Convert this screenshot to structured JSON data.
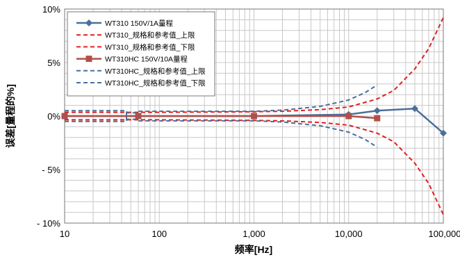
{
  "chart_data": {
    "type": "line",
    "title": "",
    "xlabel": "频率[Hz]",
    "ylabel": "误差[量程的%]",
    "xscale": "log",
    "xlim": [
      10,
      100000
    ],
    "ylim": [
      -10,
      10
    ],
    "x_ticks": [
      "10",
      "100",
      "1,000",
      "10,000",
      "100,000"
    ],
    "y_ticks": [
      "10%",
      "5%",
      "0%",
      "- 5%",
      "- 10%"
    ],
    "grid": true,
    "legend_position": "top-left",
    "series": [
      {
        "name": "WT310 150V/1A量程",
        "style": "solid",
        "marker": "diamond",
        "color": "#4a6f9a",
        "x": [
          10,
          60,
          1000,
          10000,
          20000,
          50000,
          100000
        ],
        "y": [
          0.0,
          0.0,
          0.0,
          0.15,
          0.5,
          0.7,
          -1.6
        ]
      },
      {
        "name": "WT310_规格和参考值_上限",
        "style": "dashed",
        "marker": "none",
        "color": "#e02020",
        "x": [
          10,
          100,
          1000,
          2000,
          5000,
          10000,
          20000,
          30000,
          50000,
          70000,
          100000
        ],
        "y": [
          0.35,
          0.35,
          0.4,
          0.45,
          0.6,
          0.85,
          1.6,
          2.4,
          4.4,
          6.3,
          9.2
        ]
      },
      {
        "name": "WT310_规格和参考值_下限",
        "style": "dashed",
        "marker": "none",
        "color": "#e02020",
        "x": [
          10,
          100,
          1000,
          2000,
          5000,
          10000,
          20000,
          30000,
          50000,
          70000,
          100000
        ],
        "y": [
          -0.35,
          -0.35,
          -0.4,
          -0.45,
          -0.6,
          -0.85,
          -1.6,
          -2.4,
          -4.4,
          -6.3,
          -9.2
        ]
      },
      {
        "name": "WT310HC 150V/10A量程",
        "style": "solid",
        "marker": "square",
        "color": "#b0504a",
        "x": [
          10,
          60,
          1000,
          10000,
          20000
        ],
        "y": [
          0.0,
          0.0,
          0.0,
          0.0,
          -0.2
        ]
      },
      {
        "name": "WT310HC_规格和参考值_上限",
        "style": "dashed",
        "marker": "none",
        "color": "#4a6f9a",
        "x": [
          10,
          45,
          45,
          60,
          60,
          1000,
          2000,
          5000,
          10000,
          15000,
          20000
        ],
        "y": [
          0.5,
          0.5,
          -0.3,
          -0.3,
          0.45,
          0.45,
          0.55,
          0.9,
          1.5,
          2.2,
          2.9
        ]
      },
      {
        "name": "WT310HC_规格和参考值_下限",
        "style": "dashed",
        "marker": "none",
        "color": "#4a6f9a",
        "x": [
          10,
          45,
          45,
          60,
          60,
          1000,
          2000,
          5000,
          10000,
          15000,
          20000
        ],
        "y": [
          -0.5,
          -0.5,
          0.3,
          0.3,
          -0.45,
          -0.45,
          -0.55,
          -0.9,
          -1.5,
          -2.2,
          -2.9
        ]
      }
    ]
  }
}
